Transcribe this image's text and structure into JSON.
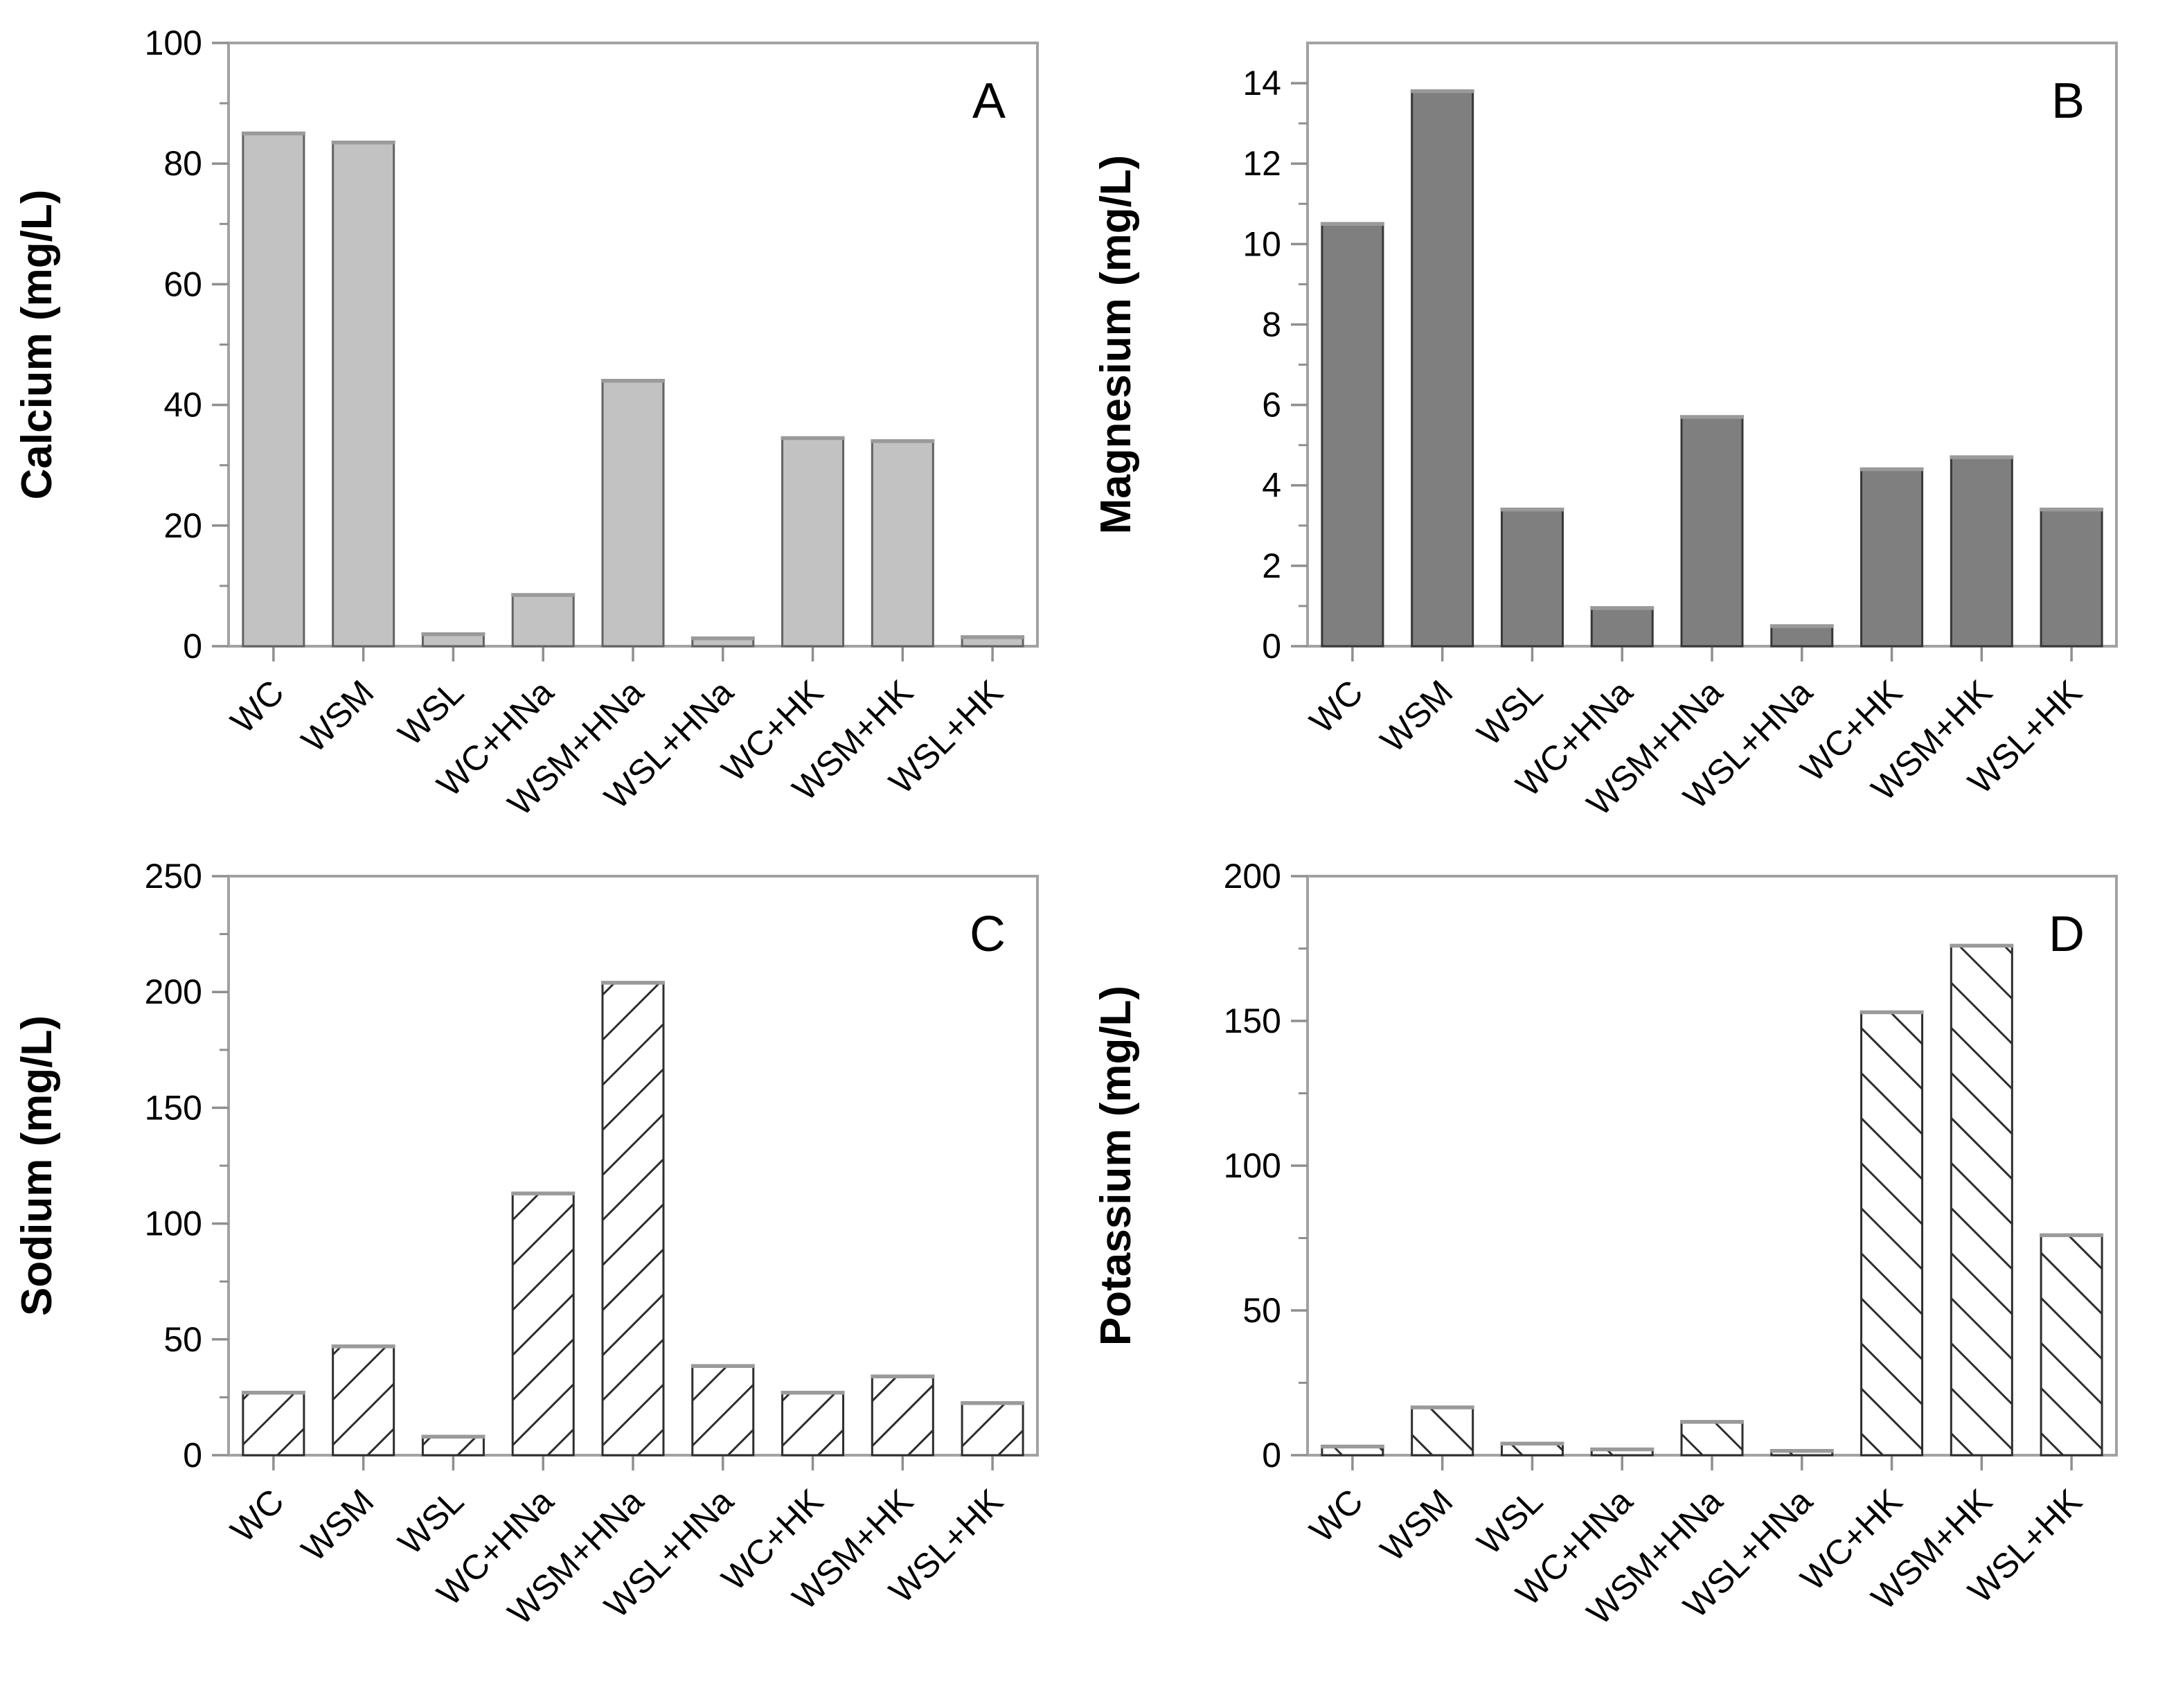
{
  "figure": {
    "background": "#ffffff",
    "frame_color": "#a2a2a2",
    "tick_color": "#8f8f8f",
    "text_color": "#000000",
    "bar_cap_color": "#9a9a9a",
    "styles": {
      "solid-light": {
        "fill": "#c2c2c2",
        "stroke": "#636363",
        "hatch": "none"
      },
      "solid-dark": {
        "fill": "#7f7f7f",
        "stroke": "#383838",
        "hatch": "none"
      },
      "hatch-forward": {
        "fill": "#ffffff",
        "stroke": "#2e2e2e",
        "hatch": "forward",
        "hatch_color": "#2e2e2e"
      },
      "hatch-backward": {
        "fill": "#ffffff",
        "stroke": "#2e2e2e",
        "hatch": "backward",
        "hatch_color": "#2e2e2e"
      }
    }
  },
  "chart_data": [
    {
      "type": "bar",
      "panel_label": "A",
      "title": "",
      "xlabel": "",
      "ylabel": "Calcium (mg/L)",
      "categories": [
        "WC",
        "WSM",
        "WSL",
        "WC+HNa",
        "WSM+HNa",
        "WSL+HNa",
        "WC+HK",
        "WSM+HK",
        "WSL+HK"
      ],
      "values": [
        85,
        83.5,
        2,
        8.5,
        44,
        1.3,
        34.5,
        34,
        1.5
      ],
      "ylim": [
        0,
        100
      ],
      "ytick_step": 20,
      "ytick_max": 100,
      "yminor_step": 10,
      "bar_style": "solid-light",
      "grid": "off",
      "legend": "none"
    },
    {
      "type": "bar",
      "panel_label": "B",
      "title": "",
      "xlabel": "",
      "ylabel": "Magnesium (mg/L)",
      "categories": [
        "WC",
        "WSM",
        "WSL",
        "WC+HNa",
        "WSM+HNa",
        "WSL+HNa",
        "WC+HK",
        "WSM+HK",
        "WSL+HK"
      ],
      "values": [
        10.5,
        13.8,
        3.4,
        0.95,
        5.7,
        0.5,
        4.4,
        4.7,
        3.4
      ],
      "ylim": [
        0,
        15
      ],
      "ytick_step": 2,
      "ytick_max": 14,
      "yminor_step": 1,
      "bar_style": "solid-dark",
      "grid": "off",
      "legend": "none"
    },
    {
      "type": "bar",
      "panel_label": "C",
      "title": "",
      "xlabel": "",
      "ylabel": "Sodium (mg/L)",
      "categories": [
        "WC",
        "WSM",
        "WSL",
        "WC+HNa",
        "WSM+HNa",
        "WSL+HNa",
        "WC+HK",
        "WSM+HK",
        "WSL+HK"
      ],
      "values": [
        27,
        47,
        8,
        113,
        204,
        38.5,
        27,
        34,
        22.5
      ],
      "ylim": [
        0,
        250
      ],
      "ytick_step": 50,
      "ytick_max": 250,
      "yminor_step": 25,
      "bar_style": "hatch-forward",
      "grid": "off",
      "legend": "none"
    },
    {
      "type": "bar",
      "panel_label": "D",
      "title": "",
      "xlabel": "",
      "ylabel": "Potassium (mg/L)",
      "categories": [
        "WC",
        "WSM",
        "WSL",
        "WC+HNa",
        "WSM+HNa",
        "WSL+HNa",
        "WC+HK",
        "WSM+HK",
        "WSL+HK"
      ],
      "values": [
        3,
        16.5,
        4,
        2,
        11.5,
        1.5,
        153,
        176,
        76
      ],
      "ylim": [
        0,
        200
      ],
      "ytick_step": 50,
      "ytick_max": 200,
      "yminor_step": 25,
      "bar_style": "hatch-backward",
      "grid": "off",
      "legend": "none"
    }
  ]
}
